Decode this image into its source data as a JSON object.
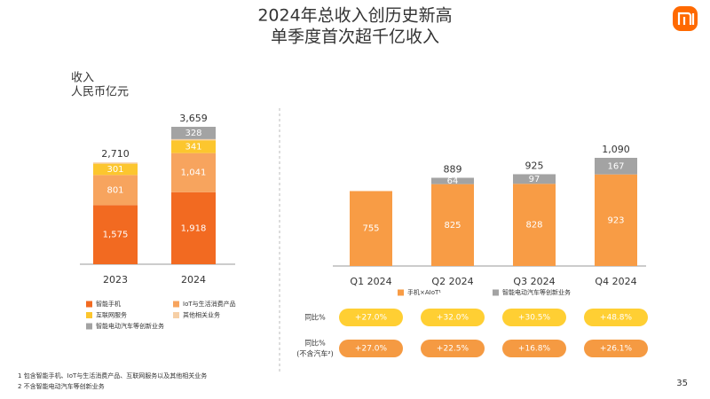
{
  "title": "2024年总收入创历史新高",
  "subtitle": "单季度首次超千亿收入",
  "page_number": "35",
  "footnotes": [
    "1  包含智能手机、IoT与生活消费产品、互联网服务以及其他相关业务",
    "2  不含智能电动汽车等创新业务"
  ],
  "chart_data": [
    {
      "type": "bar",
      "stacked": true,
      "ylabel": [
        "收入",
        "人民币亿元"
      ],
      "categories": [
        "2023",
        "2024"
      ],
      "series": [
        {
          "name": "智能手机",
          "color": "#f26a21",
          "values": [
            1575,
            1918
          ],
          "value_labels": [
            "1,575",
            "1,918"
          ]
        },
        {
          "name": "IoT与生活消费产品",
          "color": "#f7a45e",
          "values": [
            801,
            1041
          ],
          "value_labels": [
            "801",
            "1,041"
          ]
        },
        {
          "name": "互联网服务",
          "color": "#fcc62e",
          "values": [
            301,
            341
          ],
          "value_labels": [
            "301",
            "341"
          ]
        },
        {
          "name": "其他相关业务",
          "color": "#f6cfa6",
          "values": [
            33,
            31
          ],
          "labels": false
        },
        {
          "name": "智能电动汽车等创新业务",
          "color": "#a3a3a3",
          "values": [
            null,
            328
          ],
          "value_labels": [
            null,
            "328"
          ]
        }
      ],
      "totals": [
        2710,
        3659
      ],
      "total_labels": [
        "2,710",
        "3,659"
      ]
    },
    {
      "type": "bar",
      "stacked": true,
      "categories": [
        "Q1 2024",
        "Q2 2024",
        "Q3 2024",
        "Q4 2024"
      ],
      "series": [
        {
          "name": "手机×AIoT¹",
          "color": "#f89c45",
          "values": [
            755,
            825,
            828,
            923
          ]
        },
        {
          "name": "智能电动汽车等创新业务",
          "color": "#a3a3a3",
          "values": [
            null,
            64,
            97,
            167
          ]
        }
      ],
      "totals": [
        null,
        889,
        925,
        1090
      ],
      "total_labels": [
        null,
        "889",
        "925",
        "1,090"
      ],
      "growth_rows": [
        {
          "label": [
            "同比%"
          ],
          "color": "#ffcf33",
          "values": [
            27.0,
            32.0,
            30.5,
            48.8
          ],
          "value_labels": [
            "+27.0%",
            "+32.0%",
            "+30.5%",
            "+48.8%"
          ]
        },
        {
          "label": [
            "同比%",
            "(不含汽车²)"
          ],
          "color": "#f59a42",
          "values": [
            27.0,
            22.5,
            16.8,
            26.1
          ],
          "value_labels": [
            "+27.0%",
            "+22.5%",
            "+16.8%",
            "+26.1%"
          ]
        }
      ]
    }
  ]
}
